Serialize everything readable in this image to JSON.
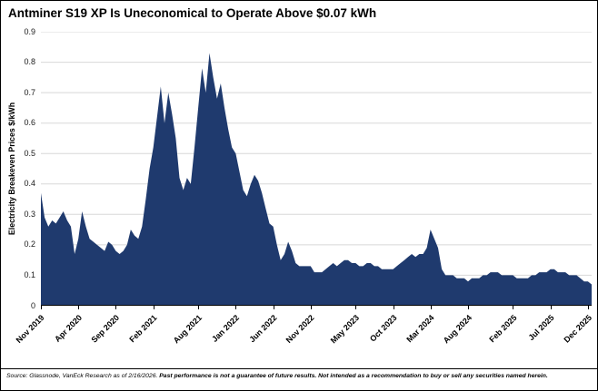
{
  "title": "Antminer S19 XP Is Uneconomical to Operate Above $0.07 kWh",
  "source": {
    "normal": "Source: Glassnode, VanEck Research as of 2/16/2026. ",
    "bold": "Past performance is not a guarantee of future results. Not intended as a recommendation to buy or sell any securities named herein."
  },
  "chart_data": {
    "type": "area",
    "title": "Antminer S19 XP Is Uneconomical to Operate Above $0.07 kWh",
    "xlabel": "",
    "ylabel": "Electricity Breakeven Prices $/kWh",
    "ylim": [
      0,
      0.9
    ],
    "y_tick_step": 0.1,
    "y_tick_labels": [
      "0",
      "0.1",
      "0.2",
      "0.3",
      "0.4",
      "0.5",
      "0.6",
      "0.7",
      "0.8",
      "0.9"
    ],
    "grid": true,
    "grid_color": "#d8d8d8",
    "fill_color": "#1f3a6e",
    "legend": "none",
    "x_sampling": "two samples per month, Nov 2019 through Dec 2025",
    "x_ticks": [
      {
        "label": "Nov 2019",
        "m": 0
      },
      {
        "label": "Apr 2020",
        "m": 5
      },
      {
        "label": "Sep 2020",
        "m": 10
      },
      {
        "label": "Feb 2021",
        "m": 15
      },
      {
        "label": "Aug 2021",
        "m": 21
      },
      {
        "label": "Jan 2022",
        "m": 26
      },
      {
        "label": "Jun 2022",
        "m": 31
      },
      {
        "label": "Nov 2022",
        "m": 36
      },
      {
        "label": "May 2023",
        "m": 42
      },
      {
        "label": "Oct 2023",
        "m": 47
      },
      {
        "label": "Mar 2024",
        "m": 52
      },
      {
        "label": "Aug 2024",
        "m": 57
      },
      {
        "label": "Feb 2025",
        "m": 63
      },
      {
        "label": "Jul 2025",
        "m": 68
      },
      {
        "label": "Dec 2025",
        "m": 73
      }
    ],
    "values": [
      0.37,
      0.29,
      0.26,
      0.28,
      0.27,
      0.29,
      0.31,
      0.28,
      0.26,
      0.17,
      0.22,
      0.31,
      0.26,
      0.22,
      0.21,
      0.2,
      0.19,
      0.18,
      0.21,
      0.2,
      0.18,
      0.17,
      0.18,
      0.2,
      0.25,
      0.23,
      0.22,
      0.26,
      0.35,
      0.45,
      0.52,
      0.62,
      0.72,
      0.6,
      0.7,
      0.63,
      0.55,
      0.42,
      0.38,
      0.42,
      0.4,
      0.52,
      0.65,
      0.78,
      0.7,
      0.83,
      0.75,
      0.68,
      0.73,
      0.65,
      0.58,
      0.52,
      0.5,
      0.44,
      0.38,
      0.36,
      0.4,
      0.43,
      0.41,
      0.37,
      0.32,
      0.27,
      0.26,
      0.2,
      0.15,
      0.17,
      0.21,
      0.18,
      0.14,
      0.13,
      0.13,
      0.13,
      0.13,
      0.11,
      0.11,
      0.11,
      0.12,
      0.13,
      0.14,
      0.13,
      0.14,
      0.15,
      0.15,
      0.14,
      0.14,
      0.13,
      0.13,
      0.14,
      0.14,
      0.13,
      0.13,
      0.12,
      0.12,
      0.12,
      0.12,
      0.13,
      0.14,
      0.15,
      0.16,
      0.17,
      0.16,
      0.17,
      0.17,
      0.19,
      0.25,
      0.22,
      0.19,
      0.12,
      0.1,
      0.1,
      0.1,
      0.09,
      0.09,
      0.09,
      0.08,
      0.09,
      0.09,
      0.09,
      0.1,
      0.1,
      0.11,
      0.11,
      0.11,
      0.1,
      0.1,
      0.1,
      0.1,
      0.09,
      0.09,
      0.09,
      0.09,
      0.1,
      0.1,
      0.11,
      0.11,
      0.11,
      0.12,
      0.12,
      0.11,
      0.11,
      0.11,
      0.1,
      0.1,
      0.1,
      0.09,
      0.08,
      0.08,
      0.07
    ]
  }
}
